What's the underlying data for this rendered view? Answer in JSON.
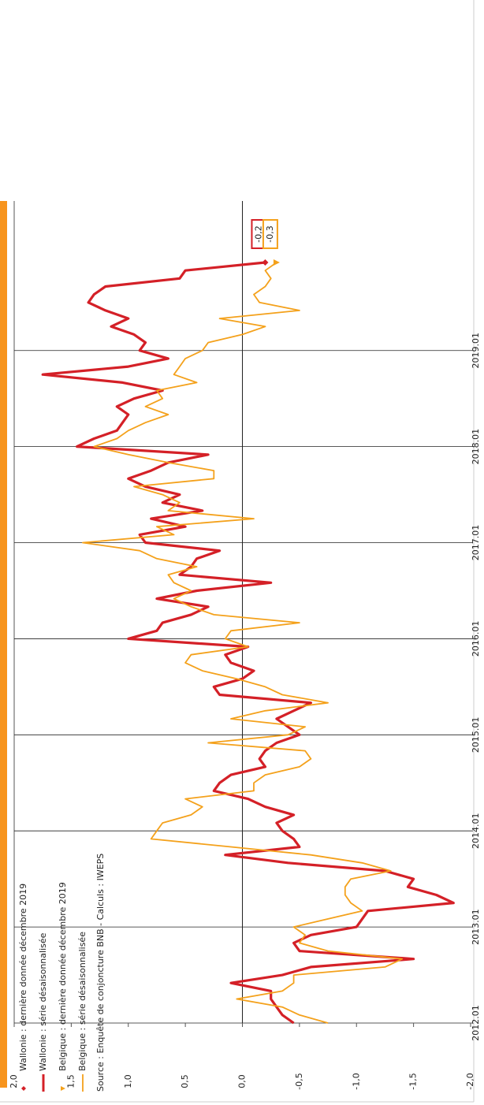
{
  "chart_data": {
    "type": "line",
    "legend": "top-left",
    "source": "Source : Enquête de conjoncture BNB - Calculs : IWEPS",
    "categories": [
      "2012.01",
      null,
      null,
      null,
      null,
      null,
      null,
      null,
      null,
      null,
      null,
      null,
      "2013.01",
      null,
      null,
      null,
      null,
      null,
      null,
      null,
      null,
      null,
      null,
      null,
      "2014.01",
      null,
      null,
      null,
      null,
      null,
      null,
      null,
      null,
      null,
      null,
      null,
      "2015.01",
      null,
      null,
      null,
      null,
      null,
      null,
      null,
      null,
      null,
      null,
      null,
      "2016.01",
      null,
      null,
      null,
      null,
      null,
      null,
      null,
      null,
      null,
      null,
      null,
      "2017.01",
      null,
      null,
      null,
      null,
      null,
      null,
      null,
      null,
      null,
      null,
      null,
      "2018.01",
      null,
      null,
      null,
      null,
      null,
      null,
      null,
      null,
      null,
      null,
      null,
      "2019.01",
      null,
      null,
      null,
      null,
      null,
      null,
      null,
      null,
      null,
      null,
      null
    ],
    "ylim": [
      -2,
      2
    ],
    "yticks": [
      {
        "value": 2,
        "label": "2,0"
      },
      {
        "value": 1.5,
        "label": "1,5"
      },
      {
        "value": 1,
        "label": "1,0"
      },
      {
        "value": 0.5,
        "label": "0,5"
      },
      {
        "value": 0,
        "label": "0,0"
      },
      {
        "value": -0.5,
        "label": "-0,5"
      },
      {
        "value": -1,
        "label": "-1,0"
      },
      {
        "value": -1.5,
        "label": "-1,5"
      },
      {
        "value": -2,
        "label": "-2,0"
      }
    ],
    "series": [
      {
        "name": "Wallonie : dernière donnée décembre 2019",
        "color": "#d42027",
        "marker": "diamond",
        "values": [
          null,
          null,
          null,
          null,
          null,
          null,
          null,
          null,
          null,
          null,
          null,
          null,
          null,
          null,
          null,
          null,
          null,
          null,
          null,
          null,
          null,
          null,
          null,
          null,
          null,
          null,
          null,
          null,
          null,
          null,
          null,
          null,
          null,
          null,
          null,
          null,
          null,
          null,
          null,
          null,
          null,
          null,
          null,
          null,
          null,
          null,
          null,
          null,
          null,
          null,
          null,
          null,
          null,
          null,
          null,
          null,
          null,
          null,
          null,
          null,
          null,
          null,
          null,
          null,
          null,
          null,
          null,
          null,
          null,
          null,
          null,
          null,
          null,
          null,
          null,
          null,
          null,
          null,
          null,
          null,
          null,
          null,
          null,
          null,
          null,
          null,
          null,
          null,
          null,
          null,
          null,
          null,
          null,
          null,
          null,
          -0.2
        ],
        "value_labels": [
          null,
          null,
          null,
          null,
          null,
          null,
          null,
          null,
          null,
          null,
          null,
          null,
          null,
          null,
          null,
          null,
          null,
          null,
          null,
          null,
          null,
          null,
          null,
          null,
          null,
          null,
          null,
          null,
          null,
          null,
          null,
          null,
          null,
          null,
          null,
          null,
          null,
          null,
          null,
          null,
          null,
          null,
          null,
          null,
          null,
          null,
          null,
          null,
          null,
          null,
          null,
          null,
          null,
          null,
          null,
          null,
          null,
          null,
          null,
          null,
          null,
          null,
          null,
          null,
          null,
          null,
          null,
          null,
          null,
          null,
          null,
          null,
          null,
          null,
          null,
          null,
          null,
          null,
          null,
          null,
          null,
          null,
          null,
          null,
          null,
          null,
          null,
          null,
          null,
          null,
          null,
          null,
          null,
          null,
          null,
          "-0,2"
        ]
      },
      {
        "name": "Wallonie : série désaisonnalisée",
        "color": "#d42027",
        "values": [
          -0.45,
          -0.35,
          -0.3,
          -0.25,
          -0.25,
          0.1,
          -0.35,
          -0.6,
          -1.5,
          -0.5,
          -0.45,
          -0.6,
          -1.0,
          -1.05,
          -1.1,
          -1.85,
          -1.7,
          -1.45,
          -1.5,
          -1.25,
          -0.4,
          0.15,
          -0.5,
          -0.45,
          -0.35,
          -0.3,
          -0.45,
          -0.2,
          -0.05,
          0.25,
          0.2,
          0.1,
          -0.2,
          -0.15,
          -0.2,
          -0.3,
          -0.5,
          -0.4,
          -0.3,
          -0.45,
          -0.6,
          0.2,
          0.25,
          0.0,
          -0.1,
          0.1,
          0.15,
          -0.05,
          1.0,
          0.75,
          0.7,
          0.45,
          0.3,
          0.75,
          0.4,
          -0.25,
          0.55,
          0.45,
          0.4,
          0.2,
          0.85,
          0.9,
          0.5,
          0.8,
          0.35,
          0.7,
          0.55,
          0.85,
          1.0,
          0.8,
          0.65,
          0.3,
          1.45,
          1.3,
          1.1,
          1.05,
          1.0,
          1.1,
          0.95,
          0.7,
          1.05,
          1.75,
          1.0,
          0.65,
          0.9,
          0.85,
          0.95,
          1.15,
          1.0,
          1.2,
          1.35,
          1.3,
          1.2,
          0.55,
          0.5,
          -0.2
        ]
      },
      {
        "name": "Belgique : dernière donnée décembre 2019",
        "color": "#f4a11b",
        "marker": "triangle",
        "values": [
          null,
          null,
          null,
          null,
          null,
          null,
          null,
          null,
          null,
          null,
          null,
          null,
          null,
          null,
          null,
          null,
          null,
          null,
          null,
          null,
          null,
          null,
          null,
          null,
          null,
          null,
          null,
          null,
          null,
          null,
          null,
          null,
          null,
          null,
          null,
          null,
          null,
          null,
          null,
          null,
          null,
          null,
          null,
          null,
          null,
          null,
          null,
          null,
          null,
          null,
          null,
          null,
          null,
          null,
          null,
          null,
          null,
          null,
          null,
          null,
          null,
          null,
          null,
          null,
          null,
          null,
          null,
          null,
          null,
          null,
          null,
          null,
          null,
          null,
          null,
          null,
          null,
          null,
          null,
          null,
          null,
          null,
          null,
          null,
          null,
          null,
          null,
          null,
          null,
          null,
          null,
          null,
          null,
          null,
          null,
          -0.3
        ],
        "value_labels": [
          null,
          null,
          null,
          null,
          null,
          null,
          null,
          null,
          null,
          null,
          null,
          null,
          null,
          null,
          null,
          null,
          null,
          null,
          null,
          null,
          null,
          null,
          null,
          null,
          null,
          null,
          null,
          null,
          null,
          null,
          null,
          null,
          null,
          null,
          null,
          null,
          null,
          null,
          null,
          null,
          null,
          null,
          null,
          null,
          null,
          null,
          null,
          null,
          null,
          null,
          null,
          null,
          null,
          null,
          null,
          null,
          null,
          null,
          null,
          null,
          null,
          null,
          null,
          null,
          null,
          null,
          null,
          null,
          null,
          null,
          null,
          null,
          null,
          null,
          null,
          null,
          null,
          null,
          null,
          null,
          null,
          null,
          null,
          null,
          null,
          null,
          null,
          null,
          null,
          null,
          null,
          null,
          null,
          null,
          null,
          "-0,3"
        ]
      },
      {
        "name": "Belgique : série désaisonnalisée",
        "color": "#f4a11b",
        "values": [
          -0.75,
          -0.5,
          -0.35,
          0.05,
          -0.35,
          -0.45,
          -0.45,
          -1.25,
          -1.4,
          -0.75,
          -0.5,
          -0.55,
          -0.45,
          -0.75,
          -1.05,
          -0.95,
          -0.9,
          -0.9,
          -0.95,
          -1.3,
          -1.05,
          -0.6,
          0.1,
          0.8,
          0.75,
          0.7,
          0.45,
          0.35,
          0.5,
          -0.1,
          -0.1,
          -0.2,
          -0.5,
          -0.6,
          -0.55,
          0.3,
          -0.4,
          -0.55,
          0.1,
          -0.2,
          -0.75,
          -0.35,
          -0.2,
          0.05,
          0.35,
          0.5,
          0.45,
          -0.05,
          0.15,
          0.1,
          -0.5,
          0.25,
          0.45,
          0.6,
          0.45,
          0.6,
          0.65,
          0.4,
          0.75,
          0.9,
          1.4,
          0.6,
          0.75,
          -0.1,
          0.65,
          0.55,
          0.7,
          0.95,
          0.25,
          0.25,
          0.65,
          1.0,
          1.3,
          1.1,
          1.0,
          0.85,
          0.65,
          0.85,
          0.7,
          0.75,
          0.4,
          0.6,
          0.55,
          0.5,
          0.35,
          0.3,
          0.0,
          -0.2,
          0.2,
          -0.5,
          -0.15,
          -0.1,
          -0.2,
          -0.25,
          -0.2,
          -0.3
        ]
      }
    ]
  }
}
